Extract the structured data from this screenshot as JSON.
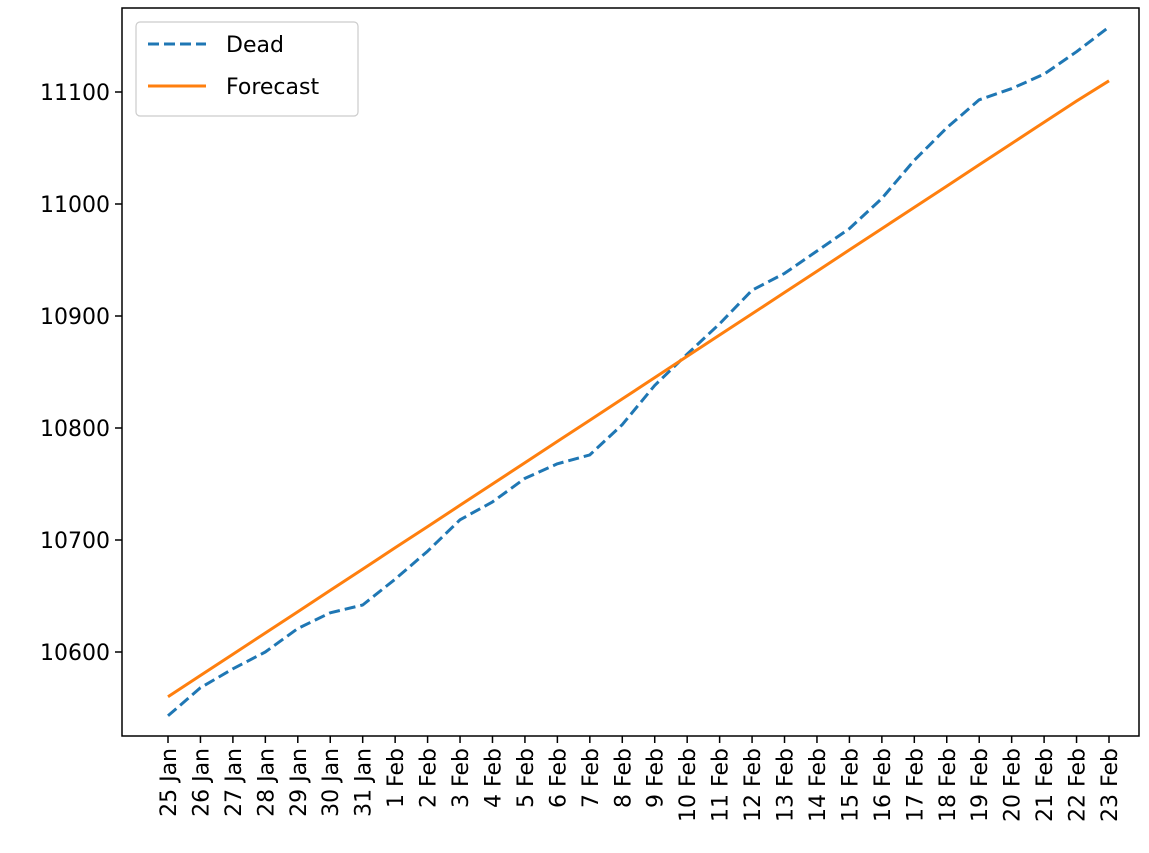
{
  "chart_data": {
    "type": "line",
    "categories": [
      "25 Jan",
      "26 Jan",
      "27 Jan",
      "28 Jan",
      "29 Jan",
      "30 Jan",
      "31 Jan",
      "1 Feb",
      "2 Feb",
      "3 Feb",
      "4 Feb",
      "5 Feb",
      "6 Feb",
      "7 Feb",
      "8 Feb",
      "9 Feb",
      "10 Feb",
      "11 Feb",
      "12 Feb",
      "13 Feb",
      "14 Feb",
      "15 Feb",
      "16 Feb",
      "17 Feb",
      "18 Feb",
      "19 Feb",
      "20 Feb",
      "21 Feb",
      "22 Feb",
      "23 Feb"
    ],
    "series": [
      {
        "name": "Dead",
        "style": "dashed",
        "color": "#1f77b4",
        "values": [
          10543,
          10568,
          10585,
          10600,
          10621,
          10635,
          10642,
          10665,
          10690,
          10718,
          10734,
          10755,
          10768,
          10776,
          10803,
          10838,
          10866,
          10893,
          10923,
          10938,
          10958,
          10978,
          11005,
          11039,
          11068,
          11093,
          11103,
          11116,
          11136,
          11158
        ]
      },
      {
        "name": "Forecast",
        "style": "solid",
        "color": "#ff7f0e",
        "values": [
          10560,
          10579,
          10598,
          10617,
          10636,
          10655,
          10674,
          10693,
          10712,
          10731,
          10750,
          10769,
          10788,
          10807,
          10826,
          10845,
          10864,
          10883,
          10902,
          10921,
          10940,
          10959,
          10978,
          10997,
          11016,
          11035,
          11054,
          11073,
          11092,
          11110
        ]
      }
    ],
    "yticks": [
      10600,
      10700,
      10800,
      10900,
      11000,
      11100
    ],
    "ylim": [
      10525,
      11175
    ],
    "legend_position": "top-left",
    "grid": false
  }
}
